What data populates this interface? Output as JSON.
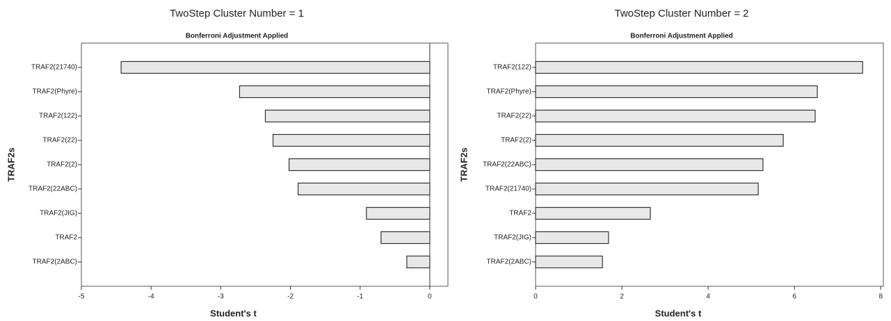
{
  "chart_data": [
    {
      "type": "bar",
      "orientation": "horizontal",
      "title": "TwoStep Cluster Number = 1",
      "subtitle": "Bonferroni Adjustment Applied",
      "xlabel": "Student's t",
      "ylabel": "TRAF2s",
      "categories": [
        "TRAF2(21740)",
        "TRAF2(Phyre)",
        "TRAF2(122)",
        "TRAF2(22)",
        "TRAF2(2)",
        "TRAF2(22ABC)",
        "TRAF2(JIG)",
        "TRAF2",
        "TRAF2(2ABC)"
      ],
      "values": [
        -4.43,
        -2.73,
        -2.36,
        -2.25,
        -2.02,
        -1.89,
        -0.91,
        -0.7,
        -0.33
      ],
      "color": "#e8e8e8",
      "xlim": [
        -5,
        0.26
      ],
      "xticks": [
        -5,
        -4,
        -3,
        -2,
        -1,
        0
      ],
      "reference_line": 0
    },
    {
      "type": "bar",
      "orientation": "horizontal",
      "title": "TwoStep Cluster Number = 2",
      "subtitle": "Bonferroni Adjustment Applied",
      "xlabel": "Student's t",
      "ylabel": "TRAF2s",
      "categories": [
        "TRAF2(122)",
        "TRAF2(Phyre)",
        "TRAF2(22)",
        "TRAF2(2)",
        "TRAF2(22ABC)",
        "TRAF2(21740)",
        "TRAF2",
        "TRAF2(JIG)",
        "TRAF2(2ABC)"
      ],
      "values": [
        7.58,
        6.53,
        6.48,
        5.74,
        5.27,
        5.16,
        2.66,
        1.69,
        1.55
      ],
      "color": "#e8e8e8",
      "xlim": [
        0,
        8.06
      ],
      "xticks": [
        0,
        2,
        4,
        6,
        8
      ]
    }
  ]
}
